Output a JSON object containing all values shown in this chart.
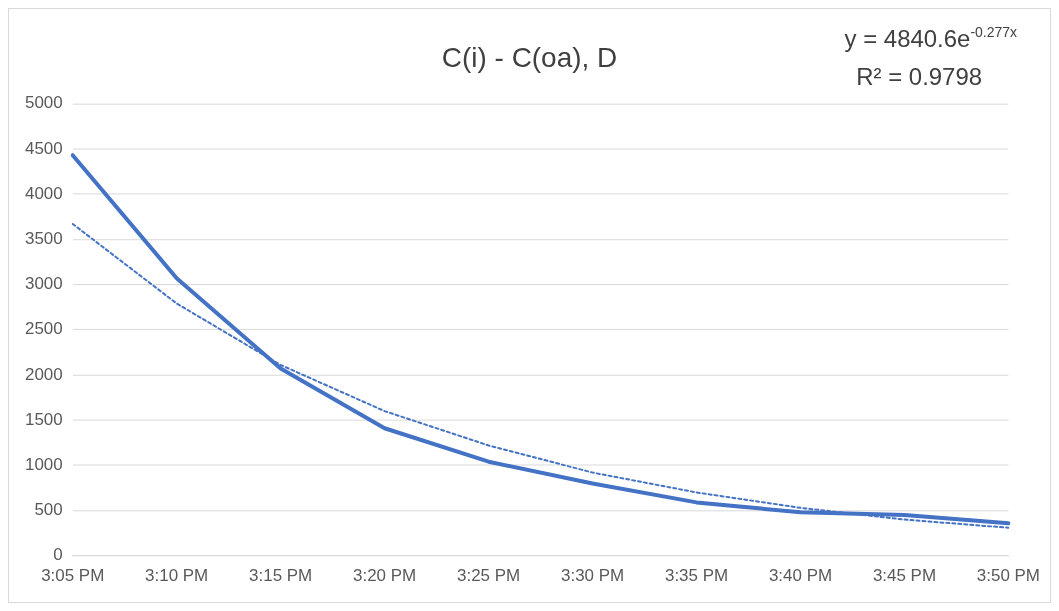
{
  "chart_data": {
    "type": "line",
    "title": "C(i) - C(oa), D",
    "categories": [
      "3:05 PM",
      "3:10 PM",
      "3:15 PM",
      "3:20 PM",
      "3:25 PM",
      "3:30 PM",
      "3:35 PM",
      "3:40 PM",
      "3:45 PM",
      "3:50 PM"
    ],
    "series": [
      {
        "color": "#4472c4",
        "values": [
          4430,
          3070,
          2070,
          1410,
          1040,
          800,
          590,
          480,
          450,
          360
        ],
        "line_style": "solid"
      },
      {
        "type": "line",
        "color": "#4472c4",
        "values": [
          3670,
          2790,
          2110,
          1600,
          1220,
          920,
          700,
          530,
          400,
          310
        ],
        "line_style": "dotted"
      }
    ],
    "ylim": [
      0,
      5000
    ],
    "yticks": [
      0,
      500,
      1000,
      1500,
      2000,
      2500,
      3000,
      3500,
      4000,
      4500,
      5000
    ],
    "grid": "y",
    "legend": false,
    "marker": "none",
    "annotations": [
      "y = 4840.6e$^{-0.277x}$",
      "R² = 0.9798"
    ]
  }
}
